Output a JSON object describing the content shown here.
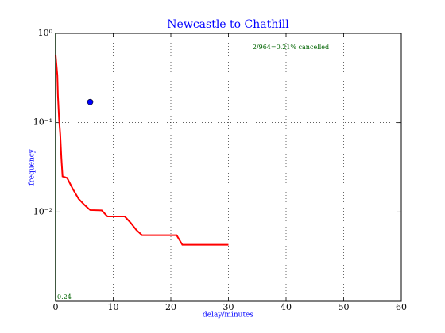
{
  "chart_data": {
    "type": "line",
    "title": "Newcastle to Chathill",
    "xlabel": "delay/minutes",
    "ylabel": "frequency",
    "log_y": true,
    "grid": true,
    "xlim": [
      0,
      60
    ],
    "xticks": [
      0,
      10,
      20,
      30,
      40,
      50,
      60
    ],
    "ylim": [
      0.001,
      1
    ],
    "yticks": [
      {
        "value": 1,
        "label": "10⁰"
      },
      {
        "value": 0.1,
        "label": "10⁻¹"
      },
      {
        "value": 0.01,
        "label": "10⁻²"
      }
    ],
    "series": [
      {
        "color": "#ff0000",
        "x": [
          0,
          0.3,
          0.4,
          0.6,
          0.8,
          1,
          1.2,
          2,
          3,
          4,
          5,
          6,
          8,
          9,
          12,
          13,
          14,
          15,
          21,
          22,
          30
        ],
        "values": [
          0.57,
          0.34,
          0.2,
          0.11,
          0.074,
          0.04,
          0.025,
          0.024,
          0.018,
          0.014,
          0.012,
          0.0105,
          0.0104,
          0.0089,
          0.0089,
          0.0076,
          0.0063,
          0.0055,
          0.0055,
          0.0043,
          0.0043
        ]
      }
    ],
    "points": [
      {
        "color": "#0000ff",
        "x": 6,
        "values": 0.17
      }
    ],
    "vlines": [
      {
        "color": "#006400",
        "x": 0
      }
    ],
    "annotations": [
      "2/964=0.21% cancelled",
      "0.24"
    ]
  }
}
